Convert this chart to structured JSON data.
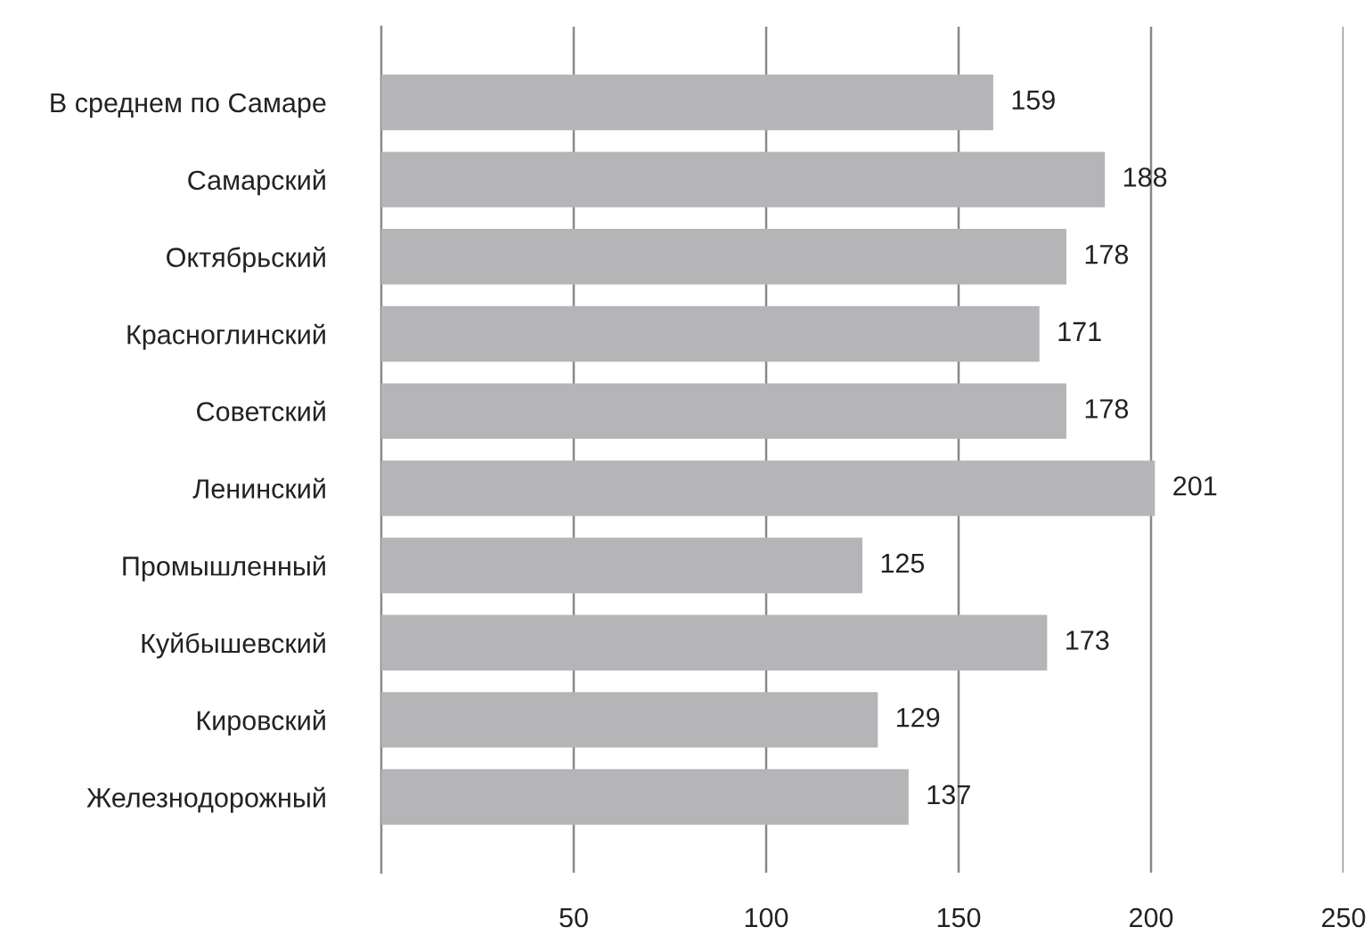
{
  "chart_data": {
    "type": "bar",
    "orientation": "horizontal",
    "categories": [
      "В среднем по Самаре",
      "Самарский",
      "Октябрьский",
      "Красноглинский",
      "Советский",
      "Ленинский",
      "Промышленный",
      "Куйбышевский",
      "Кировский",
      "Железнодорожный"
    ],
    "values": [
      159,
      188,
      178,
      171,
      178,
      201,
      125,
      173,
      129,
      137
    ],
    "color": "#b5b5b8",
    "xlim": [
      0,
      250
    ],
    "xticks": [
      50,
      100,
      150,
      200,
      250
    ],
    "grid": "x",
    "data_labels": true
  }
}
